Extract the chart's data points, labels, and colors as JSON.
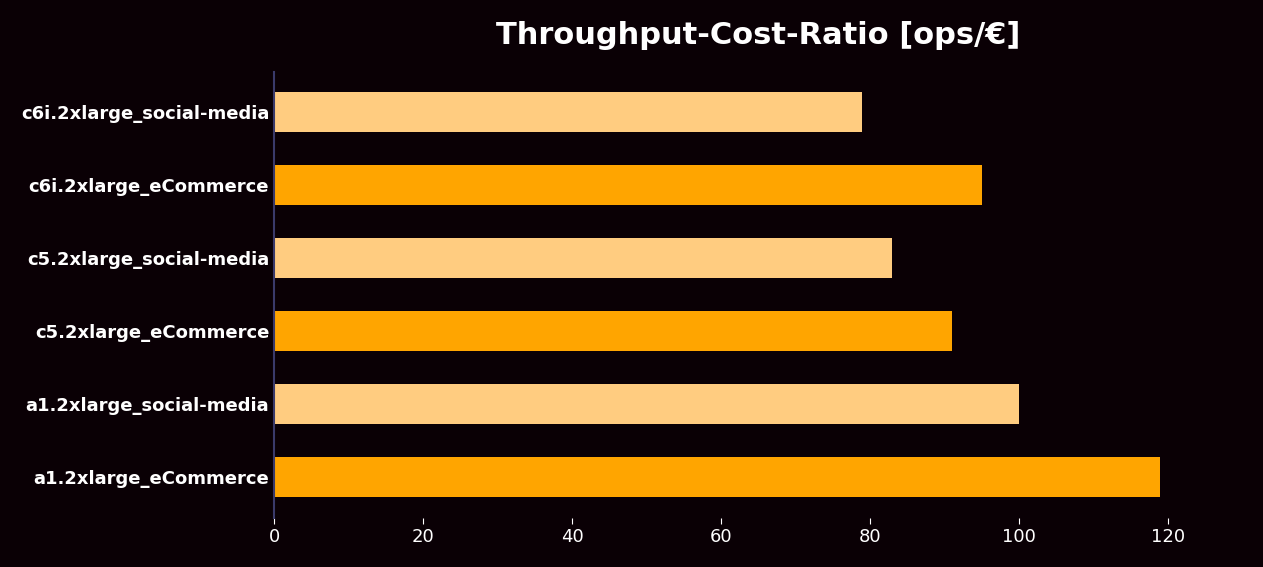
{
  "title": "Throughput-Cost-Ratio [ops/€]",
  "categories": [
    "c6i.2xlarge_social-media",
    "c6i.2xlarge_eCommerce",
    "c5.2xlarge_social-media",
    "c5.2xlarge_eCommerce",
    "a1.2xlarge_social-media",
    "a1.2xlarge_eCommerce"
  ],
  "values": [
    79,
    95,
    83,
    91,
    100,
    119
  ],
  "bar_colors": [
    "#FFCC80",
    "#FFA500",
    "#FFCC80",
    "#FFA500",
    "#FFCC80",
    "#FFA500"
  ],
  "background_color": "#0a0005",
  "text_color": "#ffffff",
  "xlim": [
    0,
    130
  ],
  "xticks": [
    0,
    20,
    40,
    60,
    80,
    100,
    120
  ],
  "title_fontsize": 22,
  "label_fontsize": 13,
  "tick_fontsize": 13,
  "bar_height": 0.55,
  "spine_color": "#3a3a6a"
}
